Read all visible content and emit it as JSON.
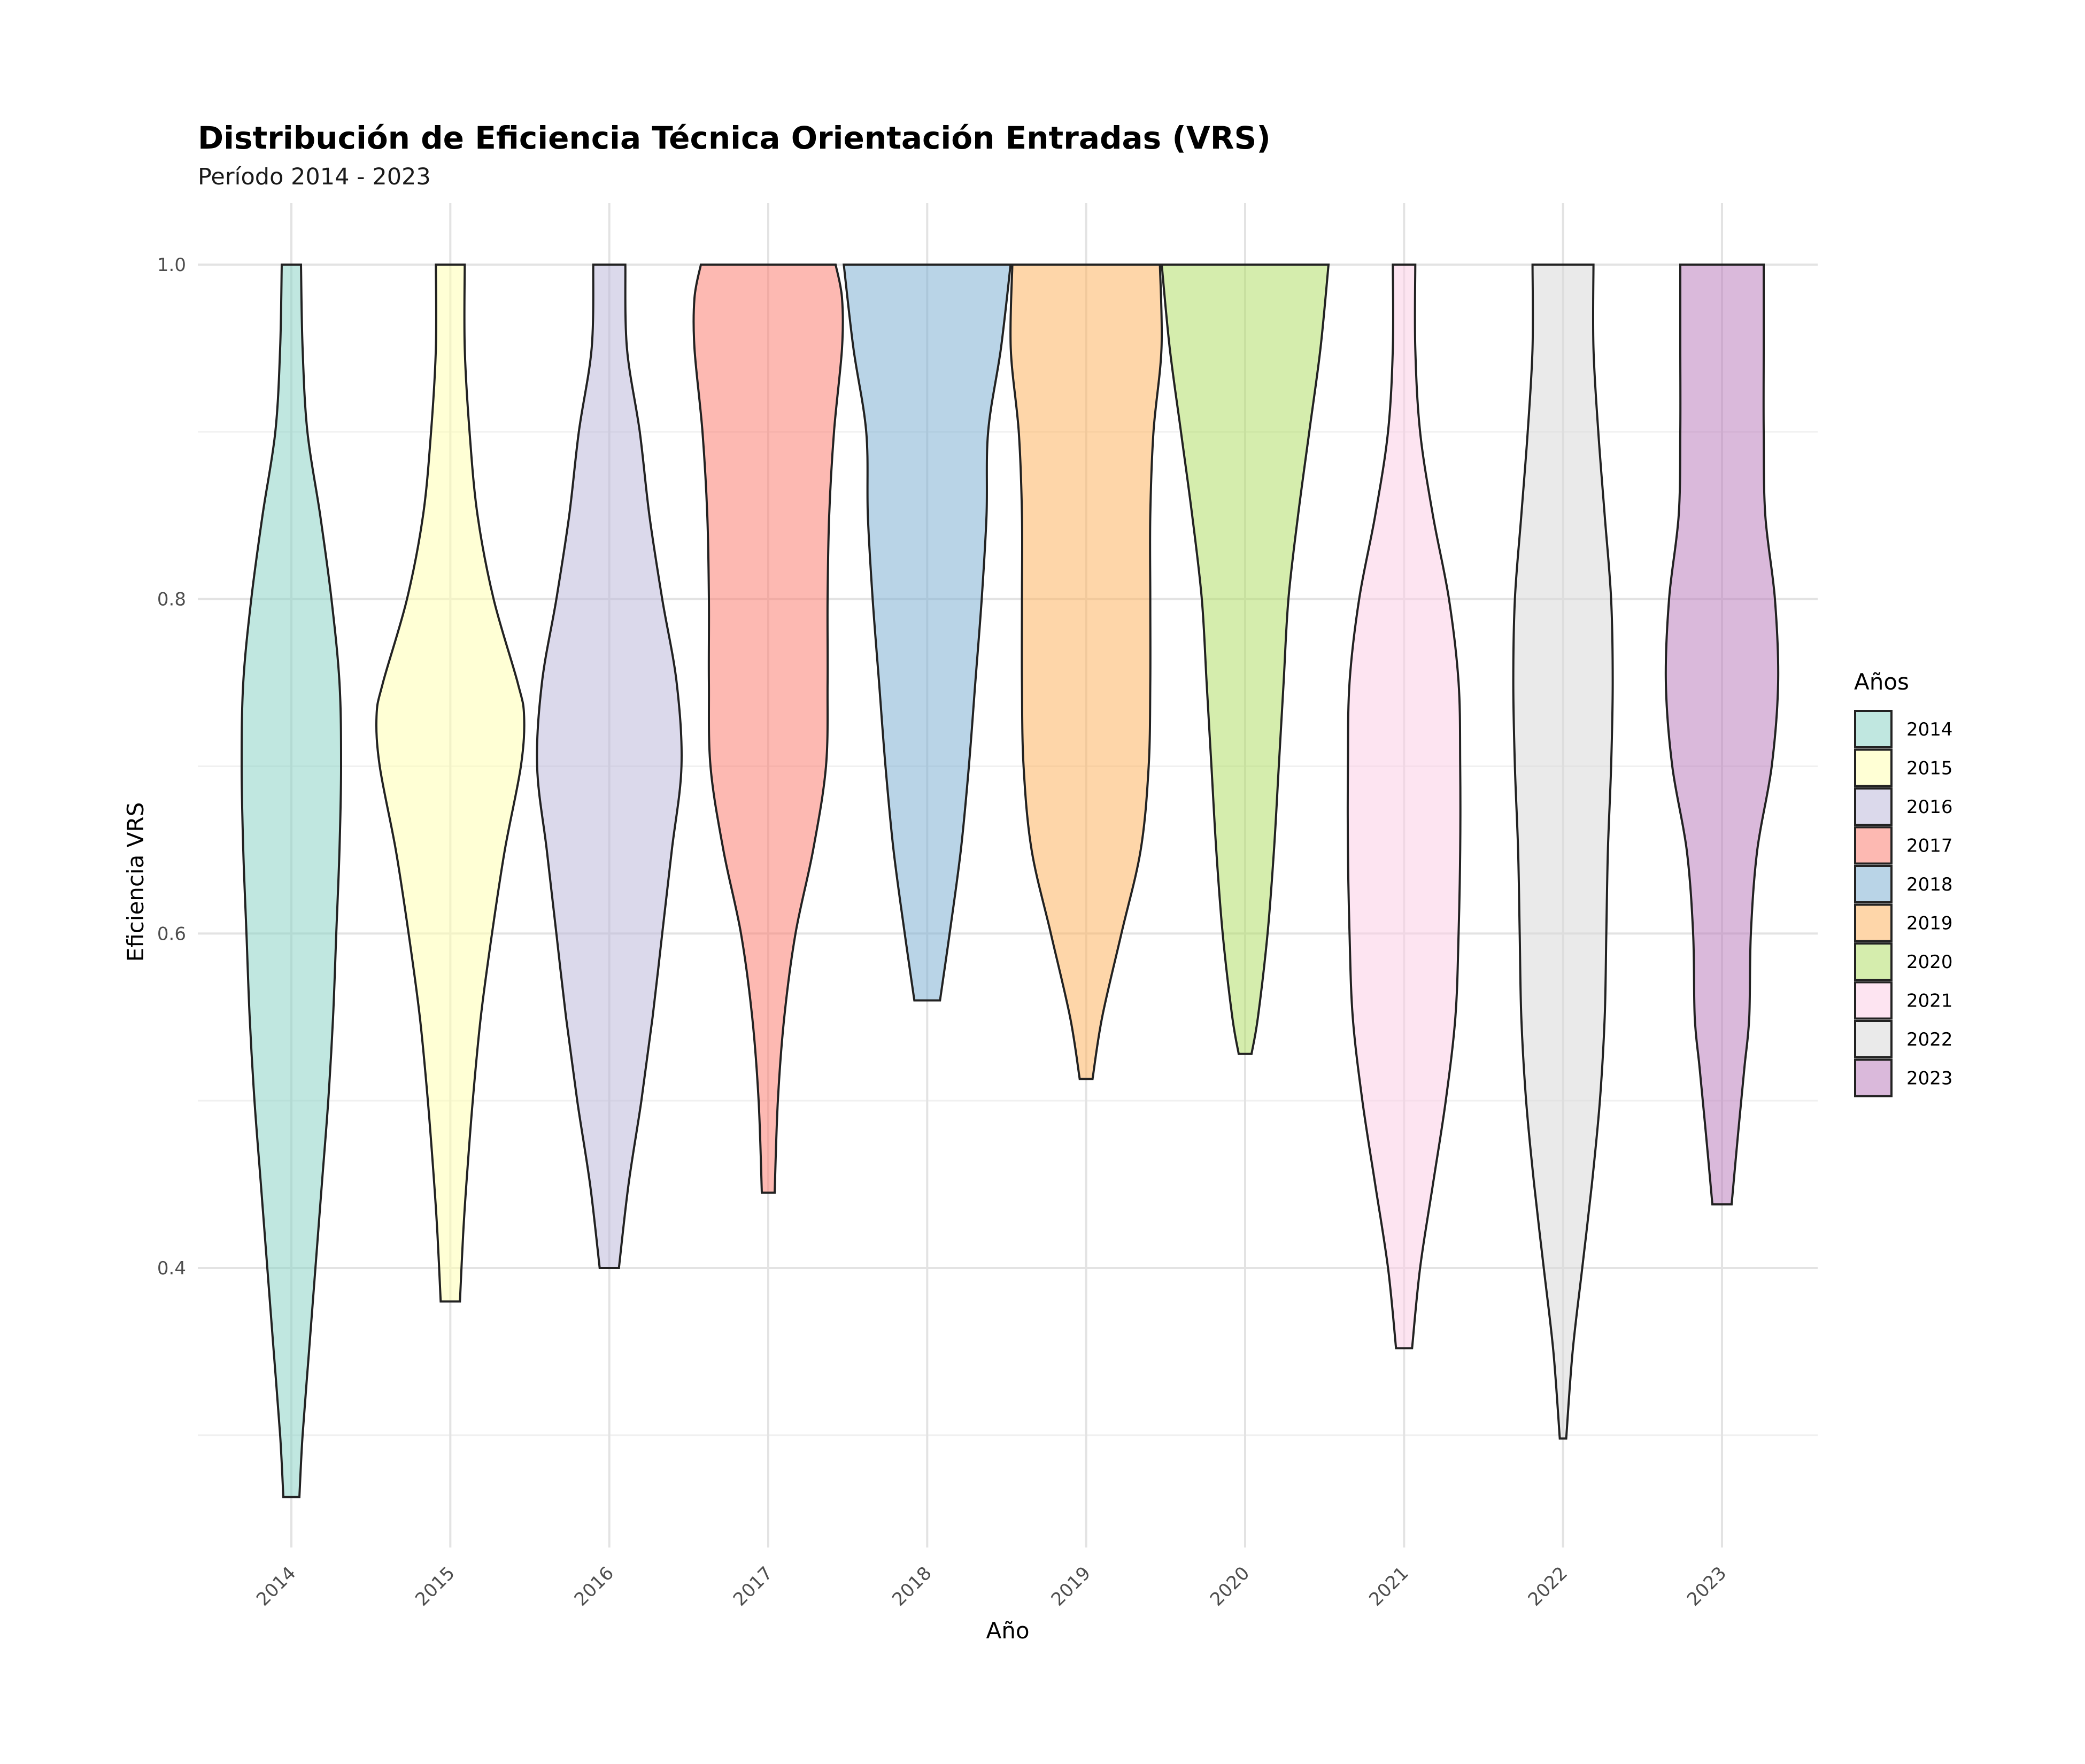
{
  "chart_data": {
    "type": "violin",
    "title": "Distribución de Eficiencia Técnica Orientación Entradas (VRS)",
    "subtitle": "Período 2014 - 2023",
    "xlabel": "Año",
    "ylabel": "Eficiencia VRS",
    "ylim": [
      0.27,
      1.035
    ],
    "yticks": [
      0.4,
      0.6,
      0.8,
      1.0
    ],
    "ytick_labels": [
      "0.4",
      "0.6",
      "0.8",
      "1.0"
    ],
    "categories": [
      "2014",
      "2015",
      "2016",
      "2017",
      "2018",
      "2019",
      "2020",
      "2021",
      "2022",
      "2023"
    ],
    "legend_title": "Años",
    "legend_position": "right",
    "series": [
      {
        "name": "2014",
        "color": "#8DD3C7",
        "min": 0.263,
        "max": 1.0,
        "profile": [
          [
            0.263,
            0.05
          ],
          [
            0.3,
            0.07
          ],
          [
            0.35,
            0.11
          ],
          [
            0.4,
            0.15
          ],
          [
            0.45,
            0.19
          ],
          [
            0.5,
            0.23
          ],
          [
            0.55,
            0.26
          ],
          [
            0.6,
            0.28
          ],
          [
            0.65,
            0.3
          ],
          [
            0.7,
            0.31
          ],
          [
            0.75,
            0.3
          ],
          [
            0.8,
            0.25
          ],
          [
            0.85,
            0.18
          ],
          [
            0.9,
            0.1
          ],
          [
            0.95,
            0.07
          ],
          [
            1.0,
            0.06
          ]
        ]
      },
      {
        "name": "2015",
        "color": "#FFFFB3",
        "min": 0.38,
        "max": 1.0,
        "profile": [
          [
            0.38,
            0.06
          ],
          [
            0.42,
            0.08
          ],
          [
            0.45,
            0.1
          ],
          [
            0.5,
            0.14
          ],
          [
            0.55,
            0.19
          ],
          [
            0.6,
            0.26
          ],
          [
            0.65,
            0.34
          ],
          [
            0.7,
            0.44
          ],
          [
            0.73,
            0.46
          ],
          [
            0.75,
            0.42
          ],
          [
            0.8,
            0.27
          ],
          [
            0.85,
            0.17
          ],
          [
            0.9,
            0.12
          ],
          [
            0.95,
            0.09
          ],
          [
            1.0,
            0.09
          ]
        ]
      },
      {
        "name": "2016",
        "color": "#BEBADA",
        "min": 0.4,
        "max": 1.0,
        "profile": [
          [
            0.4,
            0.06
          ],
          [
            0.45,
            0.12
          ],
          [
            0.5,
            0.2
          ],
          [
            0.55,
            0.27
          ],
          [
            0.6,
            0.33
          ],
          [
            0.65,
            0.39
          ],
          [
            0.7,
            0.45
          ],
          [
            0.75,
            0.42
          ],
          [
            0.8,
            0.33
          ],
          [
            0.85,
            0.25
          ],
          [
            0.9,
            0.19
          ],
          [
            0.95,
            0.11
          ],
          [
            1.0,
            0.1
          ]
        ]
      },
      {
        "name": "2017",
        "color": "#FB8072",
        "min": 0.445,
        "max": 1.0,
        "profile": [
          [
            0.445,
            0.04
          ],
          [
            0.5,
            0.06
          ],
          [
            0.55,
            0.1
          ],
          [
            0.6,
            0.17
          ],
          [
            0.65,
            0.28
          ],
          [
            0.7,
            0.36
          ],
          [
            0.75,
            0.37
          ],
          [
            0.8,
            0.37
          ],
          [
            0.85,
            0.38
          ],
          [
            0.9,
            0.41
          ],
          [
            0.95,
            0.46
          ],
          [
            0.98,
            0.46
          ],
          [
            1.0,
            0.42
          ]
        ]
      },
      {
        "name": "2018",
        "color": "#80B1D3",
        "min": 0.56,
        "max": 1.0,
        "profile": [
          [
            0.56,
            0.08
          ],
          [
            0.6,
            0.14
          ],
          [
            0.65,
            0.21
          ],
          [
            0.7,
            0.26
          ],
          [
            0.75,
            0.3
          ],
          [
            0.8,
            0.34
          ],
          [
            0.85,
            0.37
          ],
          [
            0.9,
            0.38
          ],
          [
            0.95,
            0.46
          ],
          [
            1.0,
            0.52
          ]
        ]
      },
      {
        "name": "2019",
        "color": "#FDB462",
        "min": 0.513,
        "max": 1.0,
        "profile": [
          [
            0.513,
            0.04
          ],
          [
            0.55,
            0.1
          ],
          [
            0.6,
            0.22
          ],
          [
            0.65,
            0.34
          ],
          [
            0.7,
            0.39
          ],
          [
            0.75,
            0.4
          ],
          [
            0.8,
            0.4
          ],
          [
            0.85,
            0.4
          ],
          [
            0.9,
            0.42
          ],
          [
            0.95,
            0.47
          ],
          [
            1.0,
            0.46
          ]
        ]
      },
      {
        "name": "2020",
        "color": "#B3DE69",
        "min": 0.528,
        "max": 1.0,
        "profile": [
          [
            0.528,
            0.04
          ],
          [
            0.55,
            0.08
          ],
          [
            0.6,
            0.14
          ],
          [
            0.65,
            0.18
          ],
          [
            0.7,
            0.21
          ],
          [
            0.75,
            0.24
          ],
          [
            0.8,
            0.27
          ],
          [
            0.85,
            0.33
          ],
          [
            0.9,
            0.4
          ],
          [
            0.95,
            0.47
          ],
          [
            1.0,
            0.52
          ]
        ]
      },
      {
        "name": "2021",
        "color": "#FCCDE5",
        "min": 0.352,
        "max": 1.0,
        "profile": [
          [
            0.352,
            0.05
          ],
          [
            0.4,
            0.1
          ],
          [
            0.45,
            0.18
          ],
          [
            0.5,
            0.26
          ],
          [
            0.55,
            0.32
          ],
          [
            0.6,
            0.34
          ],
          [
            0.65,
            0.35
          ],
          [
            0.7,
            0.35
          ],
          [
            0.75,
            0.34
          ],
          [
            0.8,
            0.28
          ],
          [
            0.85,
            0.18
          ],
          [
            0.9,
            0.1
          ],
          [
            0.95,
            0.07
          ],
          [
            1.0,
            0.07
          ]
        ]
      },
      {
        "name": "2022",
        "color": "#D9D9D9",
        "min": 0.298,
        "max": 1.0,
        "profile": [
          [
            0.298,
            0.02
          ],
          [
            0.35,
            0.06
          ],
          [
            0.4,
            0.12
          ],
          [
            0.45,
            0.18
          ],
          [
            0.5,
            0.23
          ],
          [
            0.55,
            0.26
          ],
          [
            0.6,
            0.27
          ],
          [
            0.65,
            0.28
          ],
          [
            0.7,
            0.3
          ],
          [
            0.75,
            0.31
          ],
          [
            0.8,
            0.3
          ],
          [
            0.85,
            0.26
          ],
          [
            0.9,
            0.22
          ],
          [
            0.95,
            0.19
          ],
          [
            1.0,
            0.19
          ]
        ]
      },
      {
        "name": "2023",
        "color": "#BC80BD",
        "min": 0.438,
        "max": 1.0,
        "profile": [
          [
            0.438,
            0.06
          ],
          [
            0.48,
            0.1
          ],
          [
            0.52,
            0.14
          ],
          [
            0.55,
            0.17
          ],
          [
            0.6,
            0.18
          ],
          [
            0.65,
            0.22
          ],
          [
            0.7,
            0.31
          ],
          [
            0.75,
            0.35
          ],
          [
            0.8,
            0.33
          ],
          [
            0.85,
            0.27
          ],
          [
            0.9,
            0.26
          ],
          [
            0.95,
            0.26
          ],
          [
            1.0,
            0.26
          ]
        ]
      }
    ]
  }
}
